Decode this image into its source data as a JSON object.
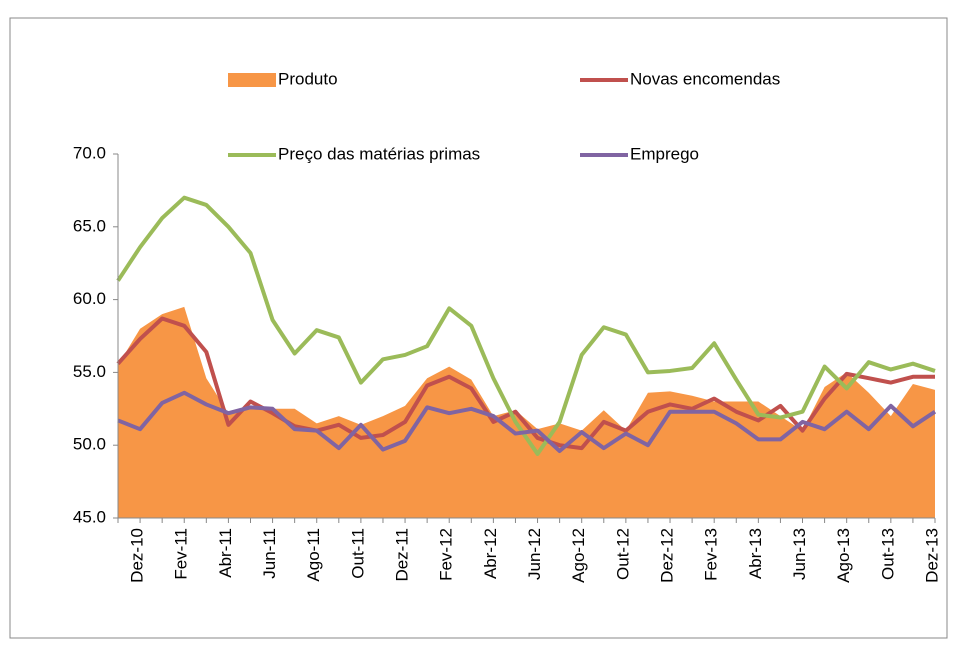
{
  "chart_data": {
    "type": "line",
    "categories": [
      null,
      "Dez-10",
      null,
      "Fev-11",
      null,
      "Abr-11",
      null,
      "Jun-11",
      null,
      "Ago-11",
      null,
      "Out-11",
      null,
      "Dez-11",
      null,
      "Fev-12",
      null,
      "Abr-12",
      null,
      "Jun-12",
      null,
      "Ago-12",
      null,
      "Out-12",
      null,
      "Dez-12",
      null,
      "Fev-13",
      null,
      "Abr-13",
      null,
      "Jun-13",
      null,
      "Ago-13",
      null,
      "Out-13",
      null,
      "Dez-13"
    ],
    "series": [
      {
        "name": "Produto",
        "kind": "area",
        "color": "#f79646",
        "values": [
          55.5,
          58.0,
          59.0,
          59.5,
          54.6,
          52.2,
          52.6,
          52.5,
          52.5,
          51.5,
          52.0,
          51.4,
          52.0,
          52.7,
          54.6,
          55.4,
          54.5,
          52.0,
          52.4,
          51.1,
          51.5,
          51.0,
          52.4,
          51.0,
          53.6,
          53.7,
          53.4,
          53.0,
          53.0,
          53.0,
          52.0,
          51.0,
          54.0,
          55.0,
          53.6,
          52.0,
          54.2,
          53.8
        ]
      },
      {
        "name": "Novas encomendas",
        "kind": "line",
        "color": "#c0504d",
        "values": [
          55.6,
          57.3,
          58.7,
          58.2,
          56.4,
          51.4,
          53.0,
          52.2,
          51.3,
          51.0,
          51.4,
          50.5,
          50.7,
          51.6,
          54.1,
          54.7,
          53.9,
          51.6,
          52.3,
          50.5,
          50.0,
          49.8,
          51.6,
          51.0,
          52.3,
          52.8,
          52.5,
          53.2,
          52.3,
          51.7,
          52.7,
          51.0,
          53.2,
          54.9,
          54.6,
          54.3,
          54.7,
          54.7
        ]
      },
      {
        "name": "Preço das matérias  primas",
        "kind": "line",
        "color": "#9bbb59",
        "values": [
          61.3,
          63.6,
          65.6,
          67.0,
          66.5,
          65.0,
          63.2,
          58.6,
          56.3,
          57.9,
          57.4,
          54.3,
          55.9,
          56.2,
          56.8,
          59.4,
          58.2,
          54.6,
          51.6,
          49.4,
          51.6,
          56.2,
          58.1,
          57.6,
          55.0,
          55.1,
          55.3,
          57.0,
          54.5,
          52.1,
          51.9,
          52.3,
          55.4,
          53.9,
          55.7,
          55.2,
          55.6,
          55.1
        ]
      },
      {
        "name": "Emprego",
        "kind": "line",
        "color": "#8064a2",
        "values": [
          51.7,
          51.1,
          52.9,
          53.6,
          52.8,
          52.2,
          52.6,
          52.5,
          51.1,
          51.0,
          49.8,
          51.4,
          49.7,
          50.3,
          52.6,
          52.2,
          52.5,
          52.0,
          50.8,
          51.0,
          49.6,
          50.9,
          49.8,
          50.8,
          50.0,
          52.3,
          52.3,
          52.3,
          51.5,
          50.4,
          50.4,
          51.6,
          51.1,
          52.3,
          51.1,
          52.7,
          51.3,
          52.3
        ]
      }
    ],
    "ylim": [
      45,
      70
    ],
    "yticks": [
      {
        "value": 45,
        "label": "45.0"
      },
      {
        "value": 50,
        "label": "50.0"
      },
      {
        "value": 55,
        "label": "55.0"
      },
      {
        "value": 60,
        "label": "60.0"
      },
      {
        "value": 65,
        "label": "65.0"
      },
      {
        "value": 70,
        "label": "70.0"
      }
    ],
    "legend": "top",
    "grid": false
  }
}
